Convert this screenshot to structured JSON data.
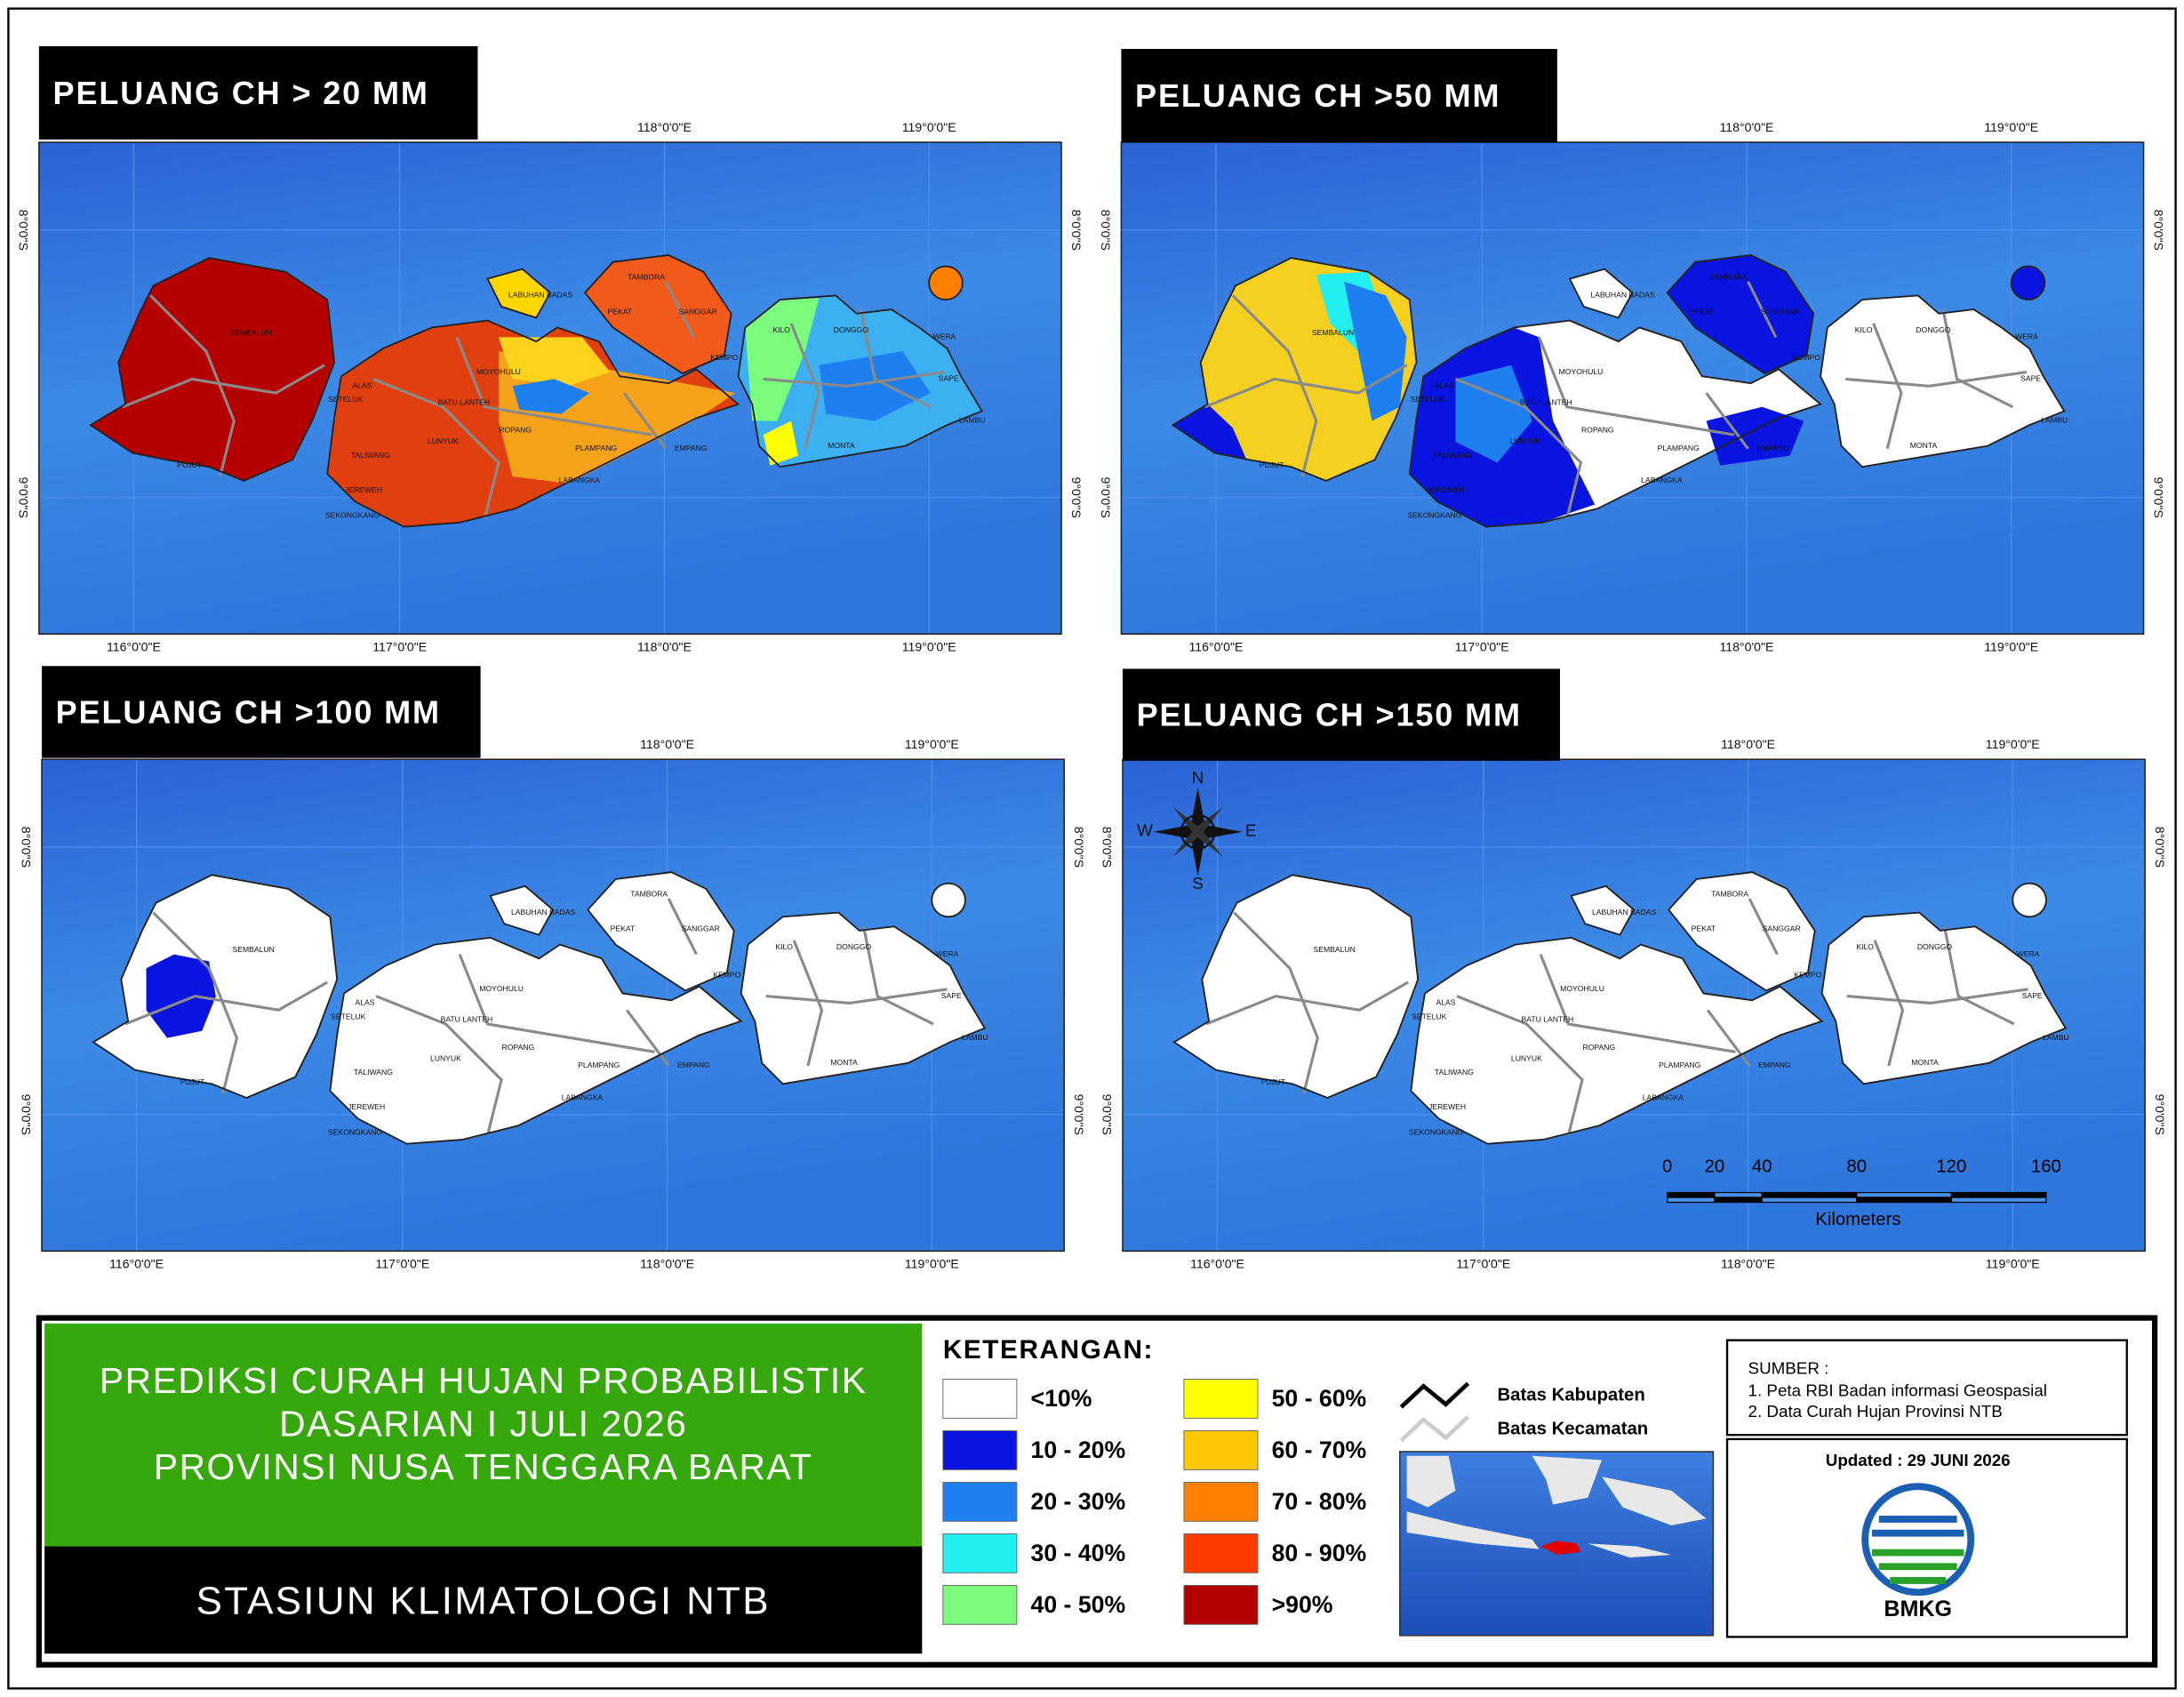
{
  "panels": [
    {
      "title": "PELUANG CH > 20 MM"
    },
    {
      "title": "PELUANG CH >50 MM"
    },
    {
      "title": "PELUANG CH >100 MM"
    },
    {
      "title": "PELUANG CH >150 MM"
    }
  ],
  "lon_labels": [
    "116°0'0\"E",
    "117°0'0\"E",
    "118°0'0\"E",
    "119°0'0\"E"
  ],
  "lat_labels": [
    "8°0'0\"S",
    "9°0'0\"S"
  ],
  "places": [
    "TAMBORA",
    "SANGGAR",
    "PEKAT",
    "KEMPO",
    "LABUHAN BADAS",
    "MOYOHULU",
    "ROPANG",
    "LUNYUK",
    "PLAMPANG",
    "EMPANG",
    "LABANGKA",
    "WERA",
    "DONGGO",
    "KILO",
    "MONTA",
    "LAMBU",
    "SAPE",
    "JEREWEH",
    "SETELUK",
    "ALAS",
    "PUJUT",
    "SEMBALUN",
    "SEKONGKANG",
    "TALIWANG",
    "BATU LANTEH"
  ],
  "compass": [
    "N",
    "E",
    "S",
    "W"
  ],
  "scale_bar": {
    "ticks": [
      0,
      20,
      40,
      80,
      120,
      160
    ],
    "unit": "Kilometers"
  },
  "title_lines": [
    "PREDIKSI CURAH HUJAN PROBABILISTIK",
    "DASARIAN  I JULI 2026",
    "PROVINSI NUSA TENGGARA BARAT"
  ],
  "station": "STASIUN KLIMATOLOGI NTB",
  "legend_title": "KETERANGAN:",
  "legend": [
    {
      "label": "<10%",
      "color": "#ffffff"
    },
    {
      "label": "10 - 20%",
      "color": "#0a14e0"
    },
    {
      "label": "20 - 30%",
      "color": "#1e7ff0"
    },
    {
      "label": "30 - 40%",
      "color": "#22f0f0"
    },
    {
      "label": "40 - 50%",
      "color": "#7cfc7c"
    },
    {
      "label": "50 - 60%",
      "color": "#ffff00"
    },
    {
      "label": "60 - 70%",
      "color": "#ffc800"
    },
    {
      "label": "70 - 80%",
      "color": "#ff8000"
    },
    {
      "label": "80 - 90%",
      "color": "#ff3c00"
    },
    {
      "label": ">90%",
      "color": "#b40000"
    }
  ],
  "boundaries": [
    "Batas Kabupaten",
    "Batas Kecamatan"
  ],
  "source_title": "SUMBER :",
  "sources": [
    "1. Peta RBI Badan informasi Geospasial",
    "2. Data Curah Hujan Provinsi NTB"
  ],
  "updated": "Updated : 29 JUNI 2026",
  "logo_text": "BMKG"
}
